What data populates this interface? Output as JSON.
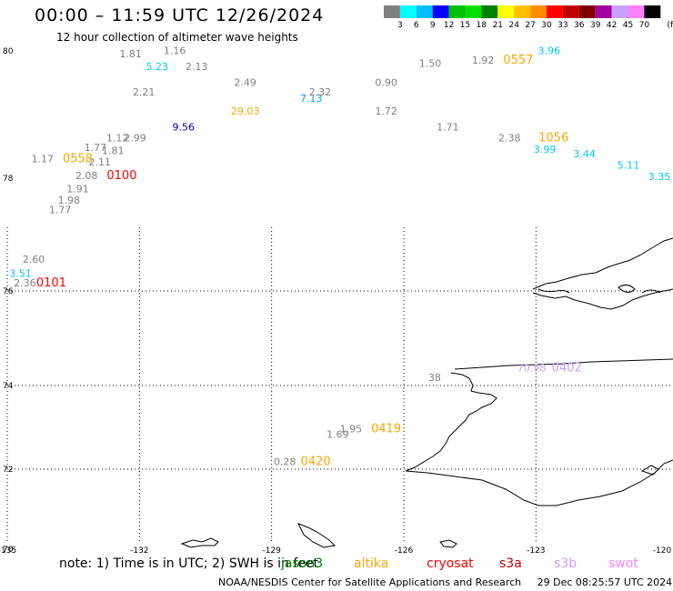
{
  "header": {
    "title": "00:00 – 11:59 UTC 12/26/2024",
    "subtitle": "12 hour collection of altimeter wave heights"
  },
  "colorbar": {
    "ticks": [
      "3",
      "6",
      "9",
      "12",
      "15",
      "18",
      "21",
      "24",
      "27",
      "30",
      "33",
      "36",
      "39",
      "42",
      "45",
      "70"
    ],
    "unit": "(ft)",
    "colors": [
      "#7f7f7f",
      "#00ffff",
      "#00bfff",
      "#0000ff",
      "#00c000",
      "#00e000",
      "#008000",
      "#ffff00",
      "#ffc000",
      "#ff8c00",
      "#ff0000",
      "#c00000",
      "#800000",
      "#a000a0",
      "#c8a0ff",
      "#ff80ff",
      "#000000"
    ]
  },
  "axes": {
    "latitudes": [
      "80",
      "78",
      "76",
      "74",
      "72",
      "70"
    ],
    "longitudes": [
      "-135",
      "-132",
      "-129",
      "-126",
      "-123",
      "-120"
    ]
  },
  "observations": [
    {
      "text": "1.81",
      "color": "#808080",
      "lon": -132.2,
      "lat": 79.9
    },
    {
      "text": "1.16",
      "color": "#808080",
      "lon": -131.2,
      "lat": 79.95
    },
    {
      "text": "5.23",
      "color": "#00c8ff",
      "lon": -131.6,
      "lat": 79.7
    },
    {
      "text": "2.13",
      "color": "#808080",
      "lon": -130.7,
      "lat": 79.7
    },
    {
      "text": "2.49",
      "color": "#808080",
      "lon": -129.6,
      "lat": 79.45
    },
    {
      "text": "2.21",
      "color": "#808080",
      "lon": -131.9,
      "lat": 79.3
    },
    {
      "text": "7.13",
      "color": "#00a0ff",
      "lon": -128.1,
      "lat": 79.2
    },
    {
      "text": "2.32",
      "color": "#808080",
      "lon": -127.9,
      "lat": 79.3
    },
    {
      "text": "0.90",
      "color": "#808080",
      "lon": -126.4,
      "lat": 79.45
    },
    {
      "text": "1.50",
      "color": "#808080",
      "lon": -125.4,
      "lat": 79.75
    },
    {
      "text": "1.92",
      "color": "#808080",
      "lon": -124.2,
      "lat": 79.8
    },
    {
      "text": "3.96",
      "color": "#00c8ff",
      "lon": -122.7,
      "lat": 79.95
    },
    {
      "text": "29.03",
      "color": "#ffa500",
      "lon": -129.6,
      "lat": 79.0
    },
    {
      "text": "1.72",
      "color": "#808080",
      "lon": -126.4,
      "lat": 79.0
    },
    {
      "text": "9.56",
      "color": "#0000c8",
      "lon": -131.0,
      "lat": 78.75
    },
    {
      "text": "1.71",
      "color": "#808080",
      "lon": -125.0,
      "lat": 78.75
    },
    {
      "text": "1.12",
      "color": "#808080",
      "lon": -132.5,
      "lat": 78.58
    },
    {
      "text": "2.99",
      "color": "#808080",
      "lon": -132.1,
      "lat": 78.58
    },
    {
      "text": "2.38",
      "color": "#808080",
      "lon": -123.6,
      "lat": 78.58
    },
    {
      "text": "1.77",
      "color": "#808080",
      "lon": -133.0,
      "lat": 78.43
    },
    {
      "text": "1.81",
      "color": "#808080",
      "lon": -132.6,
      "lat": 78.38
    },
    {
      "text": "3.99",
      "color": "#00c8ff",
      "lon": -122.8,
      "lat": 78.4
    },
    {
      "text": "3.44",
      "color": "#00c8ff",
      "lon": -121.9,
      "lat": 78.33
    },
    {
      "text": "1.17",
      "color": "#808080",
      "lon": -134.2,
      "lat": 78.25
    },
    {
      "text": "2.11",
      "color": "#808080",
      "lon": -132.9,
      "lat": 78.2
    },
    {
      "text": "5.11",
      "color": "#00c8ff",
      "lon": -120.9,
      "lat": 78.15
    },
    {
      "text": "3.35",
      "color": "#00c8ff",
      "lon": -120.2,
      "lat": 77.97
    },
    {
      "text": "2.08",
      "color": "#808080",
      "lon": -133.2,
      "lat": 77.98
    },
    {
      "text": "1.91",
      "color": "#808080",
      "lon": -133.4,
      "lat": 77.75
    },
    {
      "text": "1.98",
      "color": "#808080",
      "lon": -133.6,
      "lat": 77.55
    },
    {
      "text": "1.77",
      "color": "#808080",
      "lon": -133.8,
      "lat": 77.38
    },
    {
      "text": "2.60",
      "color": "#808080",
      "lon": -134.4,
      "lat": 76.5
    },
    {
      "text": "3.51",
      "color": "#00c8ff",
      "lon": -134.7,
      "lat": 76.25
    },
    {
      "text": "2.36",
      "color": "#808080",
      "lon": -134.6,
      "lat": 76.08
    },
    {
      "text": "70.98",
      "color": "#c8a0ff",
      "lon": -123.1,
      "lat": 74.3
    },
    {
      "text": "38",
      "color": "#808080",
      "lon": -125.3,
      "lat": 74.1
    },
    {
      "text": "1.95",
      "color": "#808080",
      "lon": -127.2,
      "lat": 72.88
    },
    {
      "text": "1.69",
      "color": "#808080",
      "lon": -127.5,
      "lat": 72.75
    },
    {
      "text": "0.28",
      "color": "#808080",
      "lon": -128.7,
      "lat": 72.1
    }
  ],
  "passes": [
    {
      "text": "0558",
      "color": "#ffa500",
      "lon": -133.4,
      "lat": 78.25
    },
    {
      "text": "0100",
      "color": "#ff0000",
      "lon": -132.4,
      "lat": 77.98
    },
    {
      "text": "0557",
      "color": "#ffa500",
      "lon": -123.4,
      "lat": 79.8
    },
    {
      "text": "1056",
      "color": "#ffa500",
      "lon": -122.6,
      "lat": 78.58
    },
    {
      "text": "0101",
      "color": "#ff0000",
      "lon": -134.0,
      "lat": 76.08
    },
    {
      "text": "0402",
      "color": "#c8a0ff",
      "lon": -122.3,
      "lat": 74.3
    },
    {
      "text": "0419",
      "color": "#ffa500",
      "lon": -126.4,
      "lat": 72.88
    },
    {
      "text": "0420",
      "color": "#ffa500",
      "lon": -128.0,
      "lat": 72.1
    }
  ],
  "note": {
    "prefix": "note: 1) Time is in UTC; 2) SWH is in feet",
    "satellites": [
      {
        "name": "jason3",
        "color": "#008000"
      },
      {
        "name": "altika",
        "color": "#ffa500"
      },
      {
        "name": "cryosat",
        "color": "#ff0000"
      },
      {
        "name": "s3a",
        "color": "#c00000"
      },
      {
        "name": "s3b",
        "color": "#c8a0ff"
      },
      {
        "name": "swot",
        "color": "#ff80ff"
      }
    ]
  },
  "footer": {
    "credit": "NOAA/NESDIS Center for Satellite Applications and Research",
    "timestamp": "29 Dec 08:25:57 UTC 2024"
  }
}
